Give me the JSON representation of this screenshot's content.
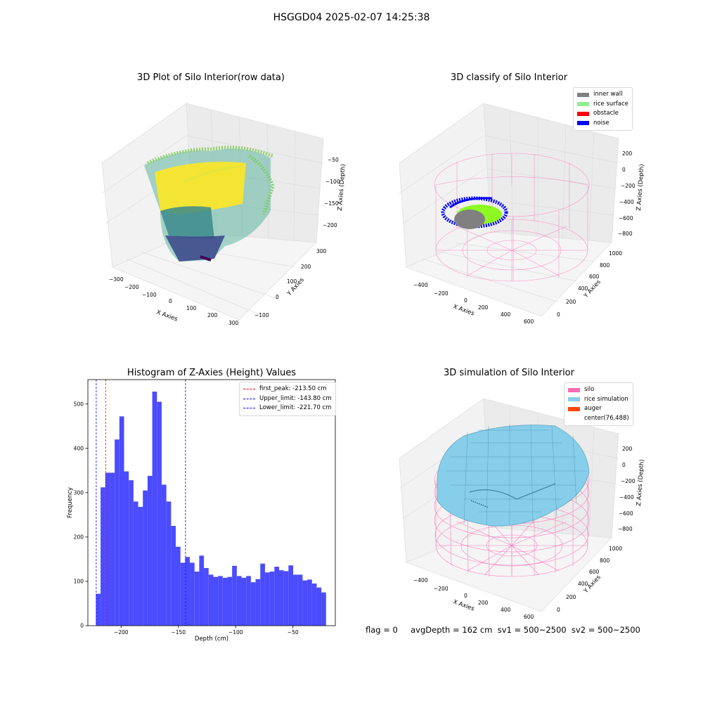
{
  "suptitle": "HSGGD04 2025-02-07 14:25:38",
  "status_text": "flag = 0     avgDepth = 162 cm  sv1 = 500~2500  sv2 = 500~2500",
  "colors": {
    "inner_wall": "#808080",
    "rice_surface": "#90ee90",
    "obstacle": "#ff0000",
    "noise": "#0000ff",
    "silo": "#ff69b4",
    "rice_simulation": "#87ceeb",
    "auger": "#ff4500",
    "hist_bar": "#4b4bff"
  },
  "panels": {
    "raw": {
      "title": "3D Plot of Silo Interior(row data)",
      "xlabel": "X Axies",
      "ylabel": "Y Axies",
      "zlabel": "Z Axies (Depth)",
      "xticks": [
        "−300",
        "−200",
        "−100",
        "0",
        "100",
        "200",
        "300"
      ],
      "yticks": [
        "−100",
        "0",
        "100",
        "200",
        "300"
      ],
      "zticks": [
        "−50",
        "−100",
        "−150",
        "−200"
      ]
    },
    "classify": {
      "title": "3D classify of Silo Interior",
      "xlabel": "X Axies",
      "ylabel": "Y Axies",
      "zlabel": "Z Axies (Depth)",
      "xticks": [
        "−400",
        "−200",
        "0",
        "200",
        "400",
        "600"
      ],
      "yticks": [
        "0",
        "200",
        "400",
        "600",
        "800",
        "1000"
      ],
      "zticks": [
        "200",
        "0",
        "−200",
        "−400",
        "−600",
        "−800"
      ],
      "legend": [
        "inner wall",
        "rice surface",
        "obstacle",
        "noise"
      ]
    },
    "simulation": {
      "title": "3D simulation of Silo Interior",
      "xlabel": "X Axies",
      "ylabel": "Y Axies",
      "zlabel": "Z Axies (Depth)",
      "xticks": [
        "−400",
        "−200",
        "0",
        "200",
        "400",
        "600"
      ],
      "yticks": [
        "0",
        "200",
        "400",
        "600",
        "800",
        "1000"
      ],
      "zticks": [
        "200",
        "0",
        "−200",
        "−400",
        "−600",
        "−800"
      ],
      "legend": [
        "silo",
        "rice simulation",
        "auger",
        "center(76,488)"
      ]
    }
  },
  "chart_data": {
    "type": "bar",
    "title": "Histogram of Z-Axies (Height) Values",
    "xlabel": "Depth (cm)",
    "ylabel": "Frequency",
    "xlim": [
      -229,
      -13
    ],
    "ylim": [
      0,
      555
    ],
    "xticks": [
      -200,
      -150,
      -100,
      -50
    ],
    "xtick_labels": [
      "−200",
      "−150",
      "−100",
      "−50"
    ],
    "yticks": [
      0,
      100,
      200,
      300,
      400,
      500
    ],
    "bin_start": -222,
    "bin_width": 4.1,
    "values": [
      72,
      312,
      345,
      345,
      420,
      472,
      348,
      328,
      280,
      268,
      305,
      338,
      528,
      505,
      318,
      280,
      225,
      178,
      142,
      155,
      142,
      122,
      158,
      130,
      115,
      110,
      112,
      108,
      110,
      135,
      112,
      108,
      112,
      98,
      105,
      140,
      120,
      122,
      133,
      125,
      123,
      136,
      115,
      115,
      102,
      104,
      95,
      86,
      75
    ],
    "lines": [
      {
        "name": "first_peak: -213.50 cm",
        "x": -213.5,
        "color": "#ff0000"
      },
      {
        "name": "Upper_limit: -143.80 cm",
        "x": -143.8,
        "color": "#0000ff"
      },
      {
        "name": "Lower_limit: -221.70 cm",
        "x": -221.7,
        "color": "#0000ff"
      }
    ],
    "legend_position": "upper right",
    "grid": false
  }
}
